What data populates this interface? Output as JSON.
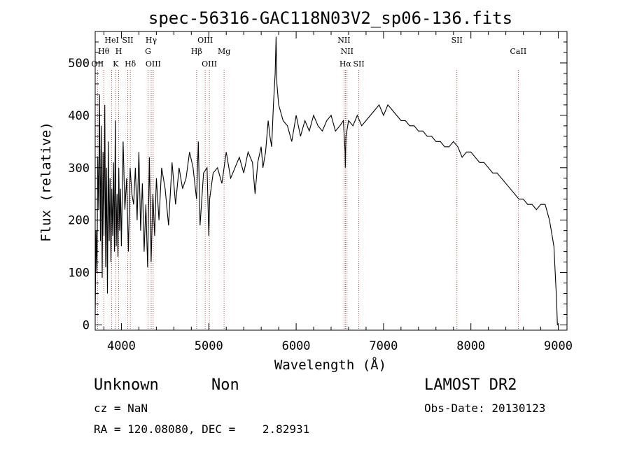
{
  "chart_data": {
    "type": "line",
    "title": "spec-56316-GAC118N03V2_sp06-136.fits",
    "xlabel": "Wavelength (Å)",
    "ylabel": "Flux (relative)",
    "xlim": [
      3700,
      9100
    ],
    "ylim": [
      -10,
      560
    ],
    "xticks": [
      4000,
      5000,
      6000,
      7000,
      8000,
      9000
    ],
    "yticks": [
      0,
      100,
      200,
      300,
      400,
      500
    ],
    "grid": false,
    "series": [
      {
        "x": [
          3700,
          3710,
          3720,
          3730,
          3740,
          3750,
          3760,
          3770,
          3780,
          3790,
          3800,
          3810,
          3820,
          3830,
          3840,
          3850,
          3860,
          3870,
          3880,
          3890,
          3900,
          3910,
          3920,
          3930,
          3940,
          3950,
          3960,
          3970,
          3980,
          3990,
          4000,
          4020,
          4040,
          4060,
          4080,
          4100,
          4120,
          4140,
          4160,
          4180,
          4200,
          4220,
          4240,
          4260,
          4280,
          4300,
          4320,
          4340,
          4360,
          4380,
          4400,
          4430,
          4460,
          4500,
          4540,
          4580,
          4620,
          4660,
          4700,
          4740,
          4780,
          4820,
          4860,
          4880,
          4900,
          4940,
          4980,
          5000,
          5010,
          5050,
          5100,
          5150,
          5200,
          5250,
          5300,
          5350,
          5400,
          5450,
          5500,
          5530,
          5560,
          5600,
          5620,
          5650,
          5680,
          5700,
          5720,
          5740,
          5760,
          5770,
          5780,
          5800,
          5850,
          5900,
          5950,
          6000,
          6050,
          6100,
          6150,
          6200,
          6250,
          6300,
          6350,
          6400,
          6450,
          6500,
          6540,
          6560,
          6563,
          6570,
          6600,
          6650,
          6700,
          6750,
          6800,
          6850,
          6900,
          6950,
          7000,
          7050,
          7100,
          7150,
          7200,
          7250,
          7300,
          7350,
          7400,
          7450,
          7500,
          7550,
          7600,
          7650,
          7700,
          7750,
          7800,
          7850,
          7900,
          7950,
          8000,
          8050,
          8100,
          8150,
          8200,
          8250,
          8300,
          8350,
          8400,
          8450,
          8500,
          8550,
          8600,
          8650,
          8700,
          8750,
          8800,
          8850,
          8900,
          8950,
          8980,
          8990,
          9000
        ],
        "y": [
          20,
          180,
          100,
          320,
          220,
          440,
          160,
          380,
          90,
          330,
          170,
          420,
          110,
          300,
          60,
          350,
          160,
          280,
          120,
          260,
          170,
          310,
          140,
          390,
          150,
          250,
          130,
          300,
          180,
          260,
          150,
          350,
          220,
          280,
          140,
          300,
          250,
          230,
          300,
          200,
          330,
          180,
          270,
          140,
          230,
          110,
          320,
          120,
          250,
          170,
          280,
          200,
          300,
          260,
          190,
          310,
          230,
          300,
          260,
          280,
          330,
          300,
          240,
          350,
          190,
          290,
          300,
          170,
          240,
          290,
          300,
          270,
          330,
          280,
          300,
          320,
          290,
          330,
          310,
          250,
          310,
          340,
          300,
          330,
          390,
          360,
          340,
          420,
          480,
          550,
          460,
          420,
          390,
          380,
          350,
          400,
          360,
          390,
          370,
          400,
          380,
          370,
          390,
          400,
          370,
          380,
          390,
          330,
          300,
          360,
          390,
          380,
          400,
          380,
          390,
          400,
          410,
          420,
          400,
          420,
          410,
          400,
          390,
          390,
          380,
          380,
          370,
          370,
          360,
          360,
          350,
          350,
          340,
          340,
          350,
          340,
          320,
          330,
          330,
          320,
          310,
          310,
          300,
          290,
          290,
          280,
          270,
          260,
          250,
          240,
          240,
          230,
          230,
          220,
          230,
          230,
          200,
          150,
          50,
          0,
          0
        ]
      }
    ],
    "lines": [
      {
        "name": "OII",
        "x": 3727,
        "label_row": 3
      },
      {
        "name": "Hθ",
        "x": 3798,
        "label_row": 2
      },
      {
        "name": "HeI",
        "x": 3889,
        "label_row": 1
      },
      {
        "name": "K",
        "x": 3934,
        "label_row": 3
      },
      {
        "name": "H",
        "x": 3969,
        "label_row": 2
      },
      {
        "name": "SII",
        "x": 4072,
        "label_row": 1
      },
      {
        "name": "Hδ",
        "x": 4102,
        "label_row": 3
      },
      {
        "name": "Hγ",
        "x": 4341,
        "label_row": 1
      },
      {
        "name": "G",
        "x": 4305,
        "label_row": 2
      },
      {
        "name": "OIII",
        "x": 4364,
        "label_row": 3
      },
      {
        "name": "Hβ",
        "x": 4861,
        "label_row": 2
      },
      {
        "name": "OIII",
        "x": 4959,
        "label_row": 1
      },
      {
        "name": "OIII",
        "x": 5007,
        "label_row": 3
      },
      {
        "name": "Mg",
        "x": 5175,
        "label_row": 2
      },
      {
        "name": "NII",
        "x": 6548,
        "label_row": 1
      },
      {
        "name": "NII",
        "x": 6583,
        "label_row": 2
      },
      {
        "name": "Hα",
        "x": 6563,
        "label_row": 3
      },
      {
        "name": "SII",
        "x": 6717,
        "label_row": 3
      },
      {
        "name": "SII",
        "x": 7840,
        "label_row": 1
      },
      {
        "name": "CaII",
        "x": 8542,
        "label_row": 2
      }
    ]
  },
  "info": {
    "class": "Unknown",
    "subclass": "Non",
    "survey": "LAMOST DR2",
    "cz": "cz = NaN",
    "obs_date": "Obs-Date: 20130123",
    "radec": "RA = 120.08080, DEC =    2.82931"
  }
}
